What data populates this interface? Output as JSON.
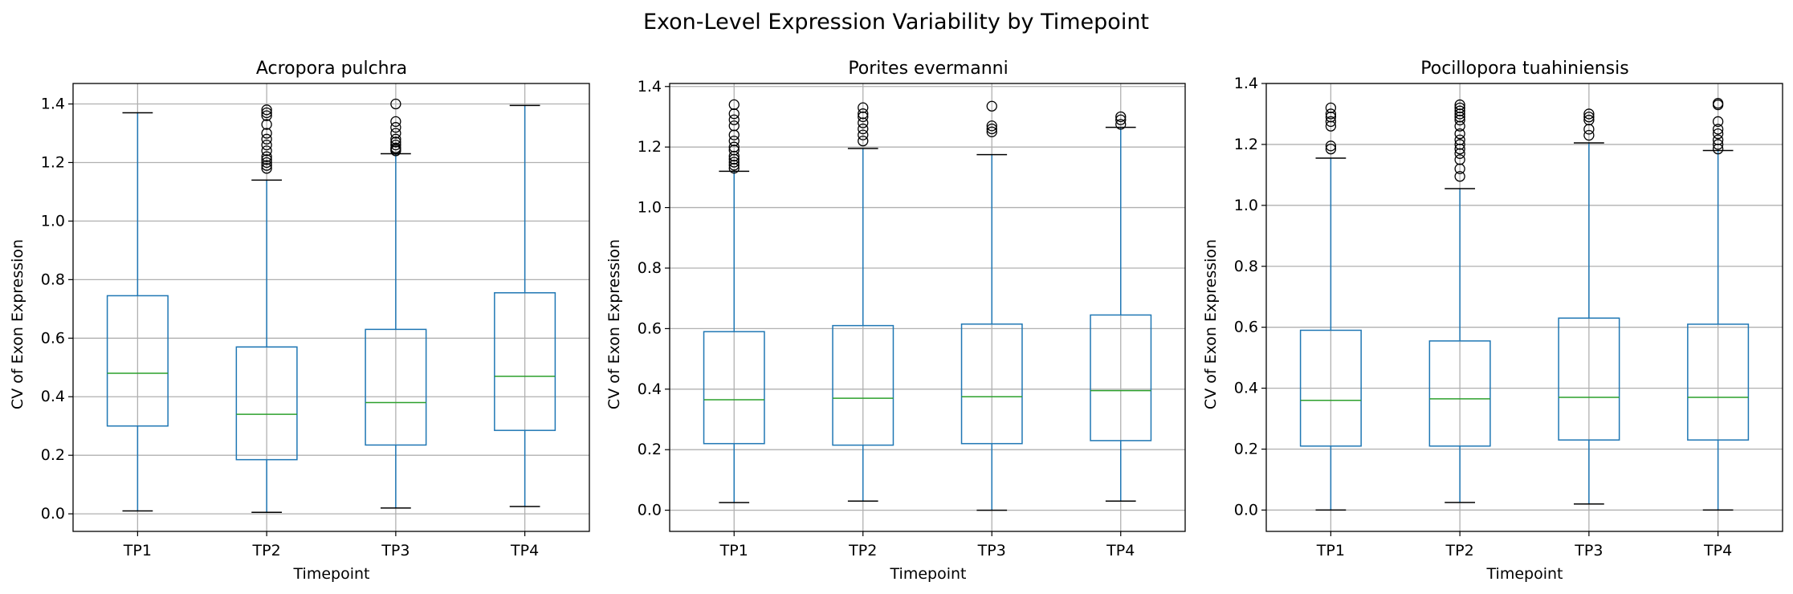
{
  "suptitle": "Exon-Level Expression Variability by Timepoint",
  "colors": {
    "box": "#1f77b4",
    "median": "#2ca02c",
    "whisker": "#1f77b4",
    "cap": "#000000",
    "outlier": "#000000",
    "grid": "#b0b0b0",
    "axis": "#000000"
  },
  "chart_data": [
    {
      "type": "box",
      "title": "Acropora pulchra",
      "xlabel": "Timepoint",
      "ylabel": "CV of Exon Expression",
      "ylim": [
        -0.06,
        1.47
      ],
      "yticks": [
        "0.0",
        "0.2",
        "0.4",
        "0.6",
        "0.8",
        "1.0",
        "1.2",
        "1.4"
      ],
      "grid": true,
      "categories": [
        "TP1",
        "TP2",
        "TP3",
        "TP4"
      ],
      "boxes": [
        {
          "whislo": 0.01,
          "q1": 0.3,
          "med": 0.48,
          "q3": 0.745,
          "whishi": 1.37,
          "fliers": []
        },
        {
          "whislo": 0.005,
          "q1": 0.185,
          "med": 0.34,
          "q3": 0.57,
          "whishi": 1.14,
          "fliers": [
            1.18,
            1.19,
            1.2,
            1.21,
            1.22,
            1.24,
            1.26,
            1.28,
            1.3,
            1.33,
            1.36,
            1.37,
            1.38
          ]
        },
        {
          "whislo": 0.02,
          "q1": 0.235,
          "med": 0.38,
          "q3": 0.63,
          "whishi": 1.23,
          "fliers": [
            1.24,
            1.245,
            1.25,
            1.26,
            1.27,
            1.28,
            1.3,
            1.32,
            1.34,
            1.4
          ]
        },
        {
          "whislo": 0.025,
          "q1": 0.285,
          "med": 0.47,
          "q3": 0.755,
          "whishi": 1.395,
          "fliers": []
        }
      ]
    },
    {
      "type": "box",
      "title": "Porites evermanni",
      "xlabel": "Timepoint",
      "ylabel": "CV of Exon Expression",
      "ylim": [
        -0.07,
        1.41
      ],
      "yticks": [
        "0.0",
        "0.2",
        "0.4",
        "0.6",
        "0.8",
        "1.0",
        "1.2",
        "1.4"
      ],
      "grid": true,
      "categories": [
        "TP1",
        "TP2",
        "TP3",
        "TP4"
      ],
      "boxes": [
        {
          "whislo": 0.025,
          "q1": 0.22,
          "med": 0.365,
          "q3": 0.59,
          "whishi": 1.12,
          "fliers": [
            1.13,
            1.14,
            1.15,
            1.16,
            1.17,
            1.19,
            1.2,
            1.22,
            1.24,
            1.27,
            1.29,
            1.31,
            1.34
          ]
        },
        {
          "whislo": 0.03,
          "q1": 0.215,
          "med": 0.37,
          "q3": 0.61,
          "whishi": 1.195,
          "fliers": [
            1.22,
            1.24,
            1.26,
            1.28,
            1.3,
            1.31,
            1.33
          ]
        },
        {
          "whislo": 0.0,
          "q1": 0.22,
          "med": 0.375,
          "q3": 0.615,
          "whishi": 1.175,
          "fliers": [
            1.25,
            1.26,
            1.27,
            1.335
          ]
        },
        {
          "whislo": 0.03,
          "q1": 0.23,
          "med": 0.395,
          "q3": 0.645,
          "whishi": 1.265,
          "fliers": [
            1.275,
            1.29,
            1.3
          ]
        }
      ]
    },
    {
      "type": "box",
      "title": "Pocillopora tuahiniensis",
      "xlabel": "Timepoint",
      "ylabel": "CV of Exon Expression",
      "ylim": [
        -0.07,
        1.4
      ],
      "yticks": [
        "0.0",
        "0.2",
        "0.4",
        "0.6",
        "0.8",
        "1.0",
        "1.2",
        "1.4"
      ],
      "grid": true,
      "categories": [
        "TP1",
        "TP2",
        "TP3",
        "TP4"
      ],
      "boxes": [
        {
          "whislo": 0.0,
          "q1": 0.21,
          "med": 0.36,
          "q3": 0.59,
          "whishi": 1.155,
          "fliers": [
            1.185,
            1.195,
            1.26,
            1.275,
            1.29,
            1.3,
            1.32
          ]
        },
        {
          "whislo": 0.025,
          "q1": 0.21,
          "med": 0.365,
          "q3": 0.555,
          "whishi": 1.055,
          "fliers": [
            1.095,
            1.12,
            1.15,
            1.17,
            1.185,
            1.2,
            1.215,
            1.235,
            1.26,
            1.28,
            1.29,
            1.3,
            1.31,
            1.32,
            1.33
          ]
        },
        {
          "whislo": 0.02,
          "q1": 0.23,
          "med": 0.37,
          "q3": 0.63,
          "whishi": 1.205,
          "fliers": [
            1.23,
            1.25,
            1.28,
            1.29,
            1.3
          ]
        },
        {
          "whislo": 0.0,
          "q1": 0.23,
          "med": 0.37,
          "q3": 0.61,
          "whishi": 1.18,
          "fliers": [
            1.185,
            1.2,
            1.215,
            1.235,
            1.25,
            1.275,
            1.33,
            1.335
          ]
        }
      ]
    }
  ]
}
